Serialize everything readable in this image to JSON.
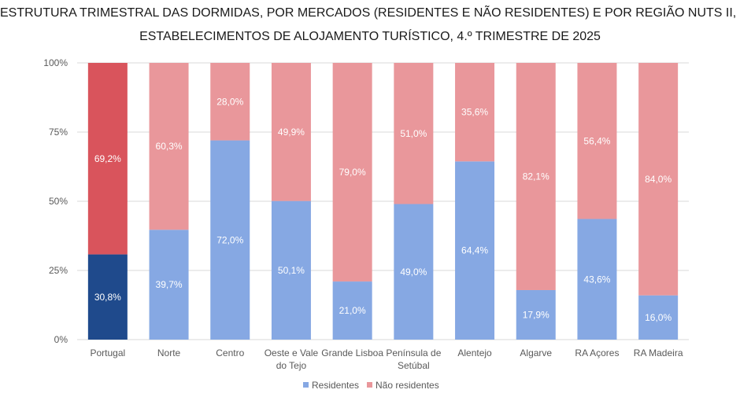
{
  "chart_data": {
    "type": "bar",
    "stacked": true,
    "title_lines": [
      "ESTRUTURA TRIMESTRAL DAS DORMIDAS, POR MERCADOS (RESIDENTES E NÃO RESIDENTES) E POR REGIÃO NUTS II, NOS",
      "ESTABELECIMENTOS DE ALOJAMENTO TURÍSTICO, 4.º TRIMESTRE DE 2025"
    ],
    "categories": [
      [
        "Portugal"
      ],
      [
        "Norte"
      ],
      [
        "Centro"
      ],
      [
        "Oeste e Vale",
        "do Tejo"
      ],
      [
        "Grande Lisboa"
      ],
      [
        "Península de",
        "Setúbal"
      ],
      [
        "Alentejo"
      ],
      [
        "Algarve"
      ],
      [
        "RA Açores"
      ],
      [
        "RA Madeira"
      ]
    ],
    "series": [
      {
        "name": "Residentes",
        "values": [
          30.8,
          39.7,
          72.0,
          50.1,
          21.0,
          49.0,
          64.4,
          17.9,
          43.6,
          16.0
        ],
        "labels": [
          "30,8%",
          "39,7%",
          "72,0%",
          "50,1%",
          "21,0%",
          "49,0%",
          "64,4%",
          "17,9%",
          "43,6%",
          "16,0%"
        ],
        "color": "#86a8e3",
        "highlight_color": "#1f4a8c"
      },
      {
        "name": "Não residentes",
        "values": [
          69.2,
          60.3,
          28.0,
          49.9,
          79.0,
          51.0,
          35.6,
          82.1,
          56.4,
          84.0
        ],
        "labels": [
          "69,2%",
          "60,3%",
          "28,0%",
          "49,9%",
          "79,0%",
          "51,0%",
          "35,6%",
          "82,1%",
          "56,4%",
          "84,0%"
        ],
        "color": "#e9979b",
        "highlight_color": "#d9545c"
      }
    ],
    "highlight_index": 0,
    "y_ticks": [
      0,
      25,
      50,
      75,
      100
    ],
    "y_tick_labels": [
      "0%",
      "25%",
      "50%",
      "75%",
      "100%"
    ],
    "ylim": [
      0,
      100
    ],
    "grid": true,
    "legend_position": "bottom",
    "gridline_color": "#d9d9d9"
  }
}
